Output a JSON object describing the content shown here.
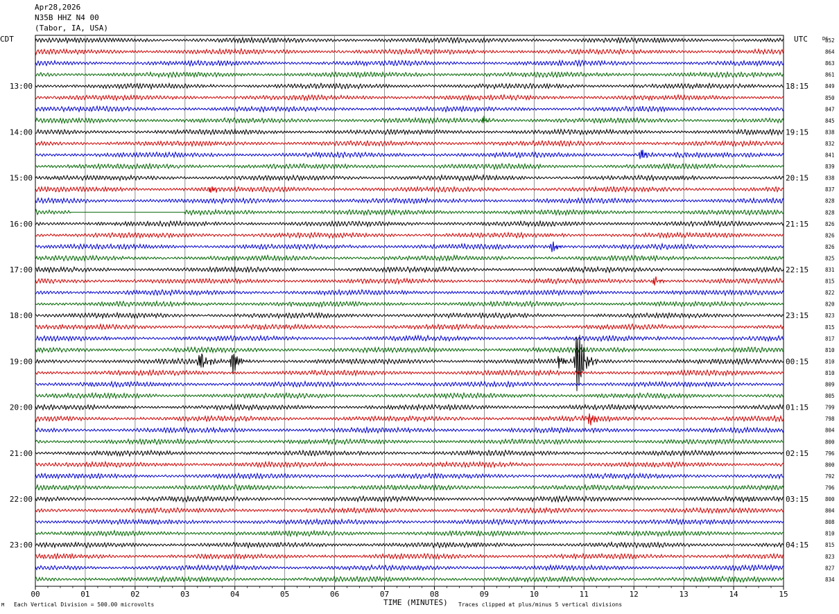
{
  "header": {
    "date": "Apr28,2026",
    "station": "N35B HHZ N4 00",
    "location": "(Tabor, IA, USA)"
  },
  "footer": {
    "scale_note": "Each Vertical Division = 500.00 microvolts",
    "clip_note": "Traces clipped at plus/minus 5 vertical divisions",
    "corner_mark": "M"
  },
  "chart_data": {
    "type": "line",
    "title": "",
    "xlabel": "TIME (MINUTES)",
    "left_axis_label": "CDT",
    "right_axis_label": "UTC",
    "dc_label": "DC",
    "xlim": [
      0,
      15
    ],
    "x_ticks": [
      "00",
      "01",
      "02",
      "03",
      "04",
      "05",
      "06",
      "07",
      "08",
      "09",
      "10",
      "11",
      "12",
      "13",
      "14",
      "15"
    ],
    "grid": true,
    "line_minutes_per_trace": 15,
    "trace_colors": [
      "#000000",
      "#cc0000",
      "#0000cc",
      "#006600"
    ],
    "cdt_hour_labels": [
      {
        "trace": 4,
        "label": "13:00"
      },
      {
        "trace": 8,
        "label": "14:00"
      },
      {
        "trace": 12,
        "label": "15:00"
      },
      {
        "trace": 16,
        "label": "16:00"
      },
      {
        "trace": 20,
        "label": "17:00"
      },
      {
        "trace": 24,
        "label": "18:00"
      },
      {
        "trace": 28,
        "label": "19:00"
      },
      {
        "trace": 32,
        "label": "20:00"
      },
      {
        "trace": 36,
        "label": "21:00"
      },
      {
        "trace": 40,
        "label": "22:00"
      },
      {
        "trace": 44,
        "label": "23:00"
      }
    ],
    "utc_hour_labels": [
      {
        "trace": 4,
        "label": "18:15"
      },
      {
        "trace": 8,
        "label": "19:15"
      },
      {
        "trace": 12,
        "label": "20:15"
      },
      {
        "trace": 16,
        "label": "21:15"
      },
      {
        "trace": 20,
        "label": "22:15"
      },
      {
        "trace": 24,
        "label": "23:15"
      },
      {
        "trace": 28,
        "label": "00:15"
      },
      {
        "trace": 32,
        "label": "01:15"
      },
      {
        "trace": 36,
        "label": "02:15"
      },
      {
        "trace": 40,
        "label": "03:15"
      },
      {
        "trace": 44,
        "label": "04:15"
      }
    ],
    "dc_values": [
      "852",
      "864",
      "863",
      "861",
      "849",
      "850",
      "847",
      "845",
      "838",
      "832",
      "841",
      "839",
      "838",
      "837",
      "828",
      "828",
      "826",
      "826",
      "826",
      "825",
      "831",
      "815",
      "822",
      "820",
      "823",
      "815",
      "817",
      "810",
      "810",
      "810",
      "809",
      "805",
      "799",
      "798",
      "804",
      "800",
      "796",
      "800",
      "792",
      "796",
      "800",
      "804",
      "808",
      "810",
      "815",
      "823",
      "827",
      "834"
    ],
    "events": [
      {
        "trace": 28,
        "minute": 3.3,
        "amplitude": 1.1
      },
      {
        "trace": 28,
        "minute": 3.95,
        "amplitude": 1.3
      },
      {
        "trace": 28,
        "minute": 10.5,
        "amplitude": 0.6
      },
      {
        "trace": 28,
        "minute": 10.85,
        "amplitude": 4.6
      },
      {
        "trace": 7,
        "minute": 9.0,
        "amplitude": 0.5
      },
      {
        "trace": 10,
        "minute": 12.15,
        "amplitude": 0.7
      },
      {
        "trace": 13,
        "minute": 3.5,
        "amplitude": 0.5
      },
      {
        "trace": 18,
        "minute": 10.35,
        "amplitude": 0.6
      },
      {
        "trace": 21,
        "minute": 12.4,
        "amplitude": 0.5
      },
      {
        "trace": 33,
        "minute": 11.1,
        "amplitude": 0.7
      }
    ],
    "flat_segments": [
      {
        "trace": 15,
        "from": 0.7,
        "to": 3.0
      }
    ]
  }
}
